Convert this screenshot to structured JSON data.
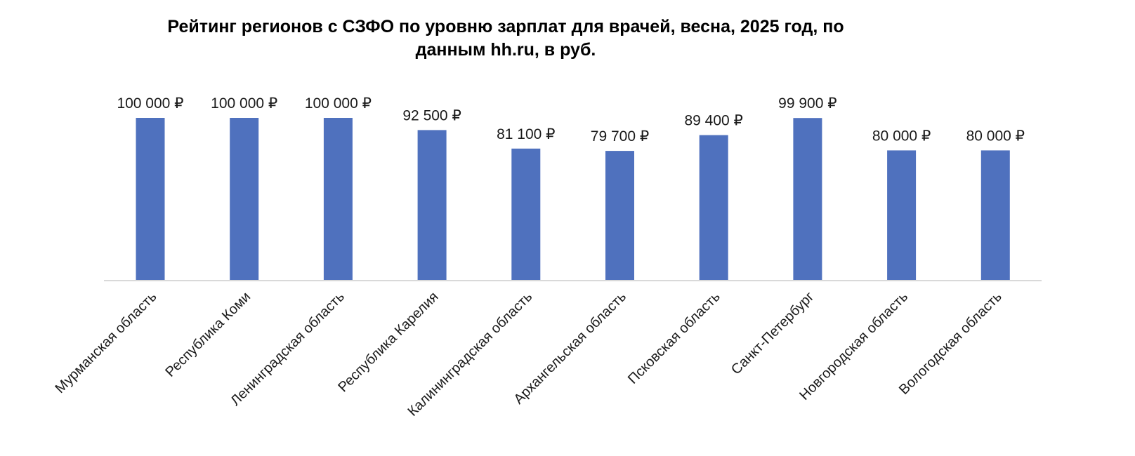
{
  "chart_data": {
    "type": "bar",
    "title_lines": [
      "Рейтинг регионов с СЗФО по уровню зарплат для врачей, весна, 2025 год, по",
      "данным hh.ru, в руб."
    ],
    "categories": [
      "Мурманская область",
      "Республика Коми",
      "Ленинградская область",
      "Республика Карелия",
      "Калининградская область",
      "Архангельская область",
      "Псковская область",
      "Санкт-Петербург",
      "Новгородская область",
      "Вологодская область"
    ],
    "values": [
      100000,
      100000,
      100000,
      92500,
      81100,
      79700,
      89400,
      99900,
      80000,
      80000
    ],
    "data_labels": [
      "100 000 ₽",
      "100 000 ₽",
      "100 000 ₽",
      "92 500 ₽",
      "81 100 ₽",
      "79 700 ₽",
      "89 400 ₽",
      "99 900 ₽",
      "80 000 ₽",
      "80 000 ₽"
    ],
    "ylim": [
      0,
      100000
    ],
    "grid": false,
    "legend": "none",
    "bar_color": "#4f71be",
    "axis_color": "#d9d9d9"
  }
}
